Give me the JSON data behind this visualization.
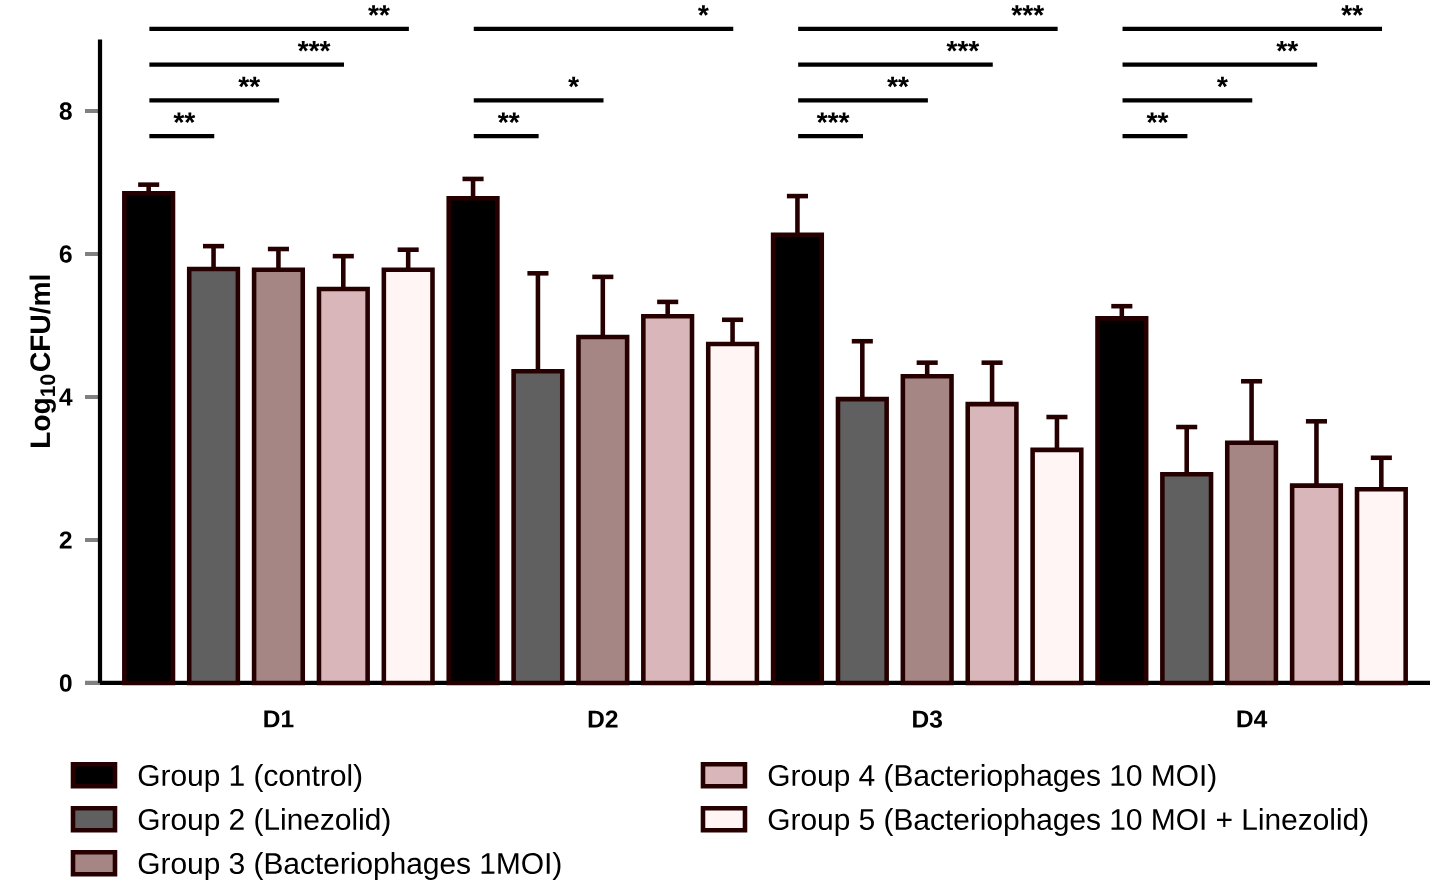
{
  "chart_data": {
    "type": "bar",
    "ylabel": "Log$_{10}$CFU/ml",
    "categories": [
      "D1",
      "D2",
      "D3",
      "D4"
    ],
    "series": [
      {
        "name": "Group 1 (control)",
        "color": "#000000",
        "values": [
          6.85,
          6.78,
          6.27,
          5.1
        ],
        "errors": [
          0.12,
          0.27,
          0.54,
          0.17
        ]
      },
      {
        "name": "Group 2 (Linezolid)",
        "color": "#606060",
        "values": [
          5.79,
          4.36,
          3.97,
          2.92
        ],
        "errors": [
          0.32,
          1.37,
          0.81,
          0.66
        ]
      },
      {
        "name": "Group 3 (Bacteriophages 1MOI)",
        "color": "#a68585",
        "values": [
          5.78,
          4.84,
          4.29,
          3.36
        ],
        "errors": [
          0.29,
          0.84,
          0.19,
          0.86
        ]
      },
      {
        "name": "Group 4 (Bacteriophages 10 MOI)",
        "color": "#d9b6b9",
        "values": [
          5.51,
          5.13,
          3.9,
          2.76
        ],
        "errors": [
          0.46,
          0.2,
          0.58,
          0.9
        ]
      },
      {
        "name": "Group 5 (Bacteriophages 10 MOI + Linezolid)",
        "color": "#fff5f5",
        "values": [
          5.78,
          4.74,
          3.26,
          2.71
        ],
        "errors": [
          0.28,
          0.34,
          0.46,
          0.44
        ]
      }
    ],
    "ylim": [
      0,
      9
    ],
    "yticks": [
      0,
      2,
      4,
      6,
      8
    ],
    "grid": false,
    "legend": "bottom",
    "annotations": [
      "**",
      "**",
      "***",
      "**",
      "**",
      "*",
      "*",
      "***",
      "**",
      "***",
      "***",
      "**",
      "*",
      "**",
      "**"
    ]
  }
}
